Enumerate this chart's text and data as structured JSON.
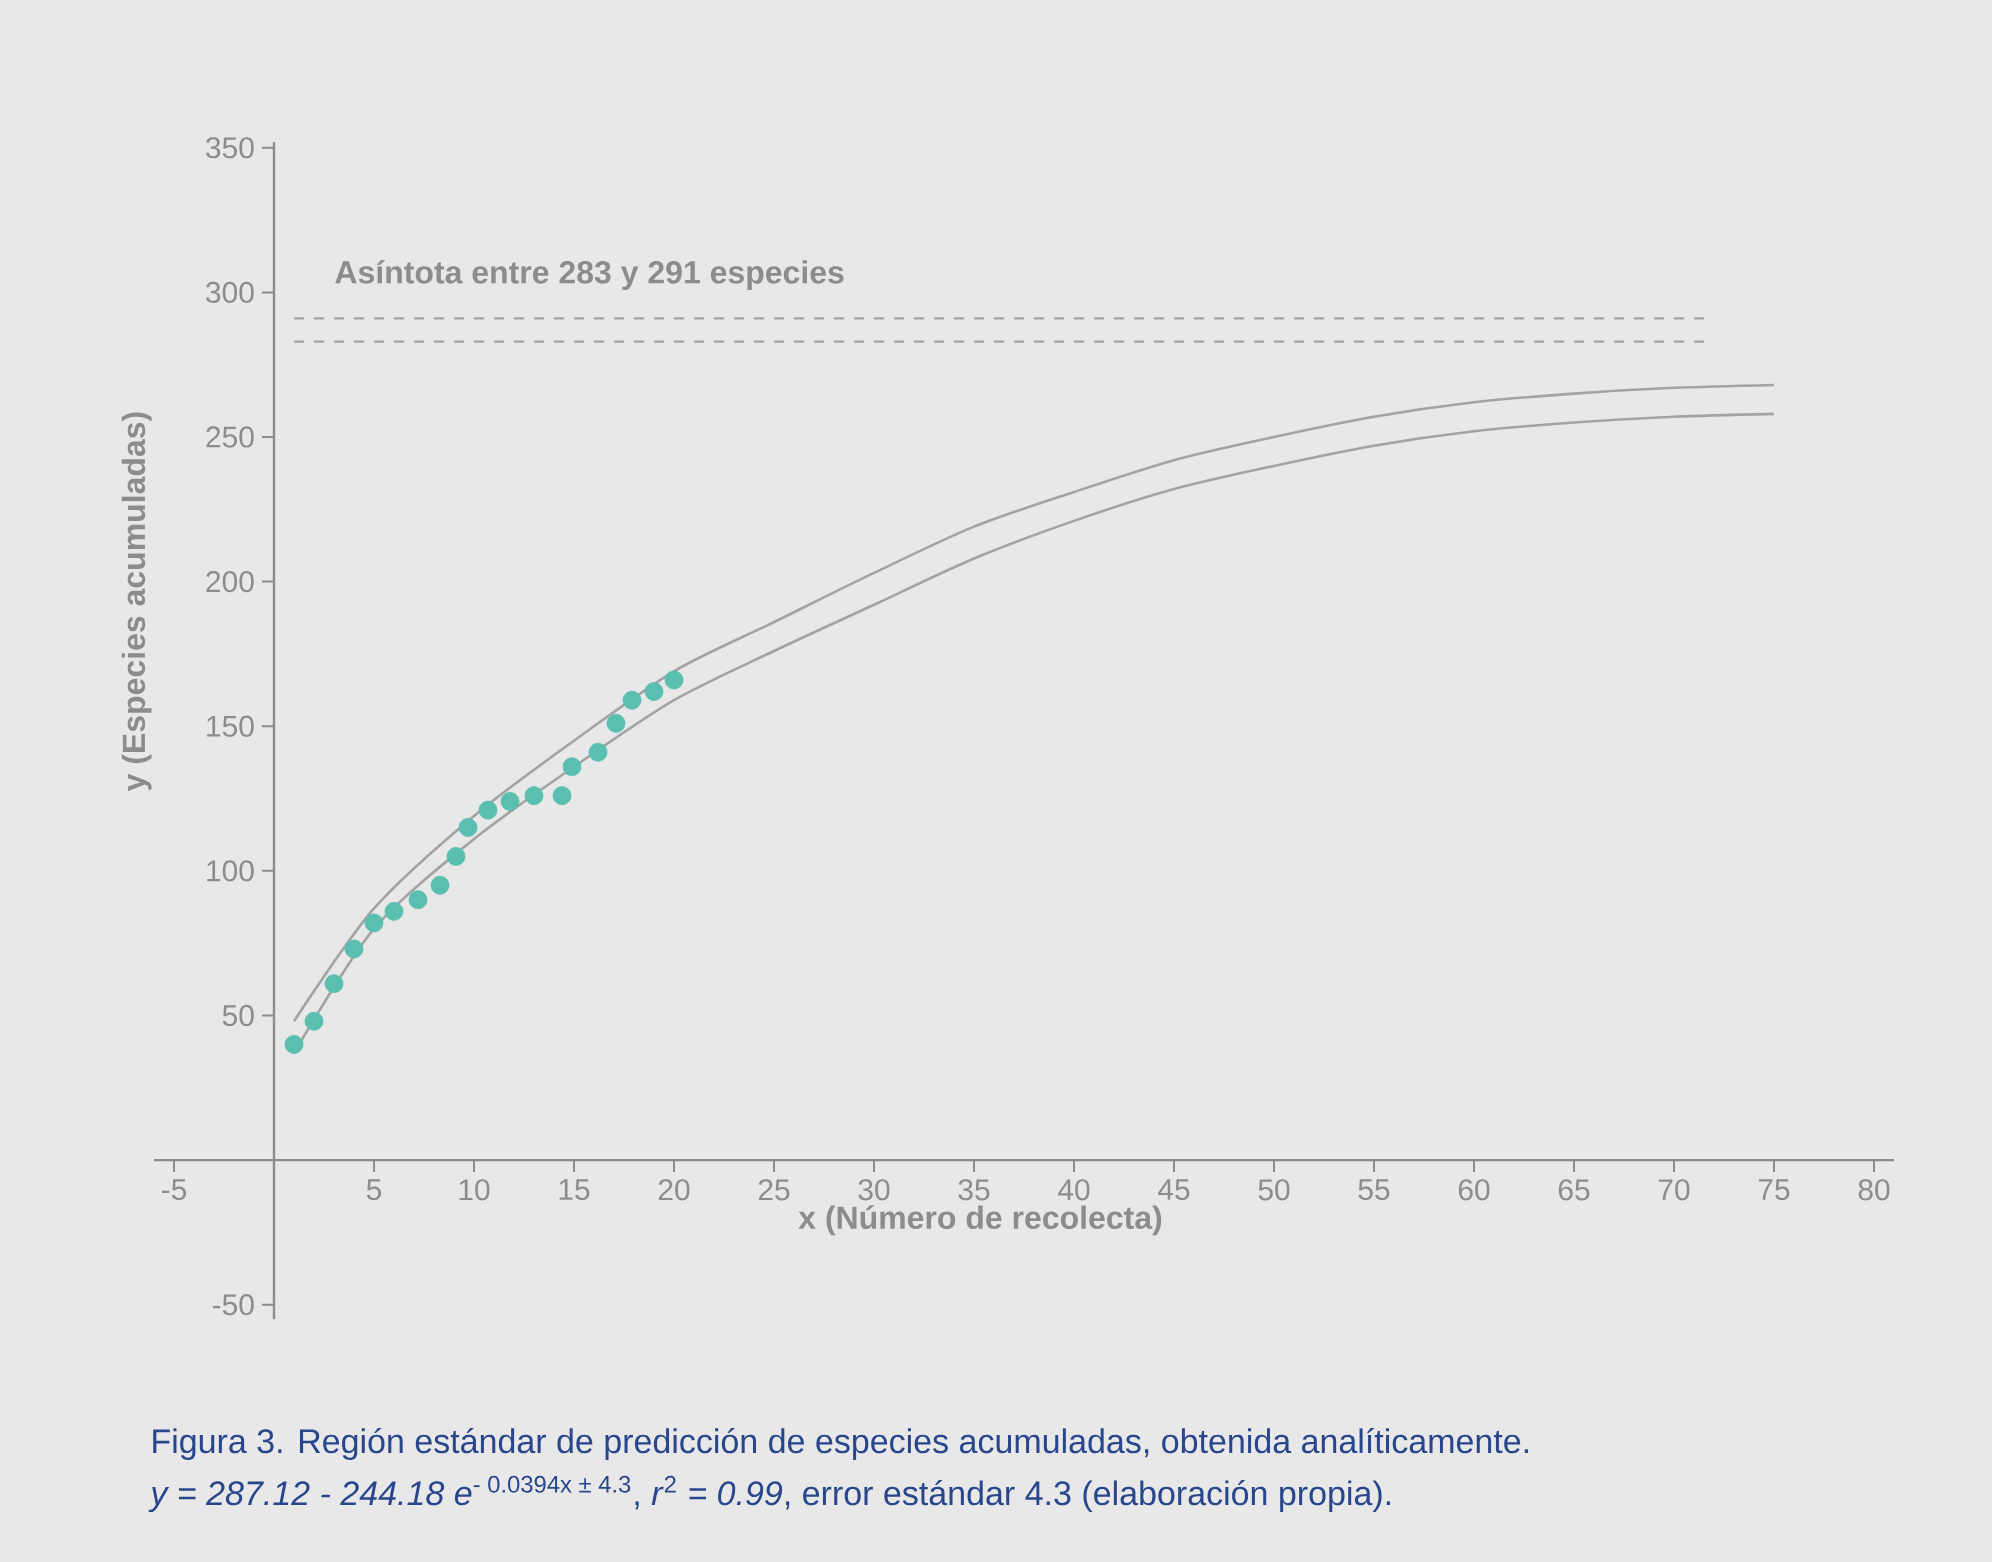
{
  "chart_data": {
    "type": "scatter",
    "xlabel": "x (Número de recolecta)",
    "ylabel": "y (Especies acumuladas)",
    "xlim": [
      -6,
      81
    ],
    "ylim": [
      -55,
      352
    ],
    "xticks": [
      -5,
      5,
      10,
      15,
      20,
      25,
      30,
      35,
      40,
      45,
      50,
      55,
      60,
      65,
      70,
      75,
      80
    ],
    "yticks": [
      -50,
      50,
      100,
      150,
      200,
      250,
      300,
      350
    ],
    "series": [
      {
        "marker": "circle",
        "color": "#5bbfb0",
        "x": [
          1,
          2,
          3,
          4,
          5,
          6,
          7.2,
          8.3,
          9.1,
          9.7,
          10.7,
          11.8,
          13,
          14.4,
          14.9,
          16.2,
          17.1,
          17.9,
          19,
          20
        ],
        "values": [
          40,
          48,
          61,
          73,
          82,
          86,
          90,
          95,
          105,
          115,
          121,
          124,
          126,
          126,
          136,
          141,
          151,
          159,
          162,
          166
        ]
      },
      {
        "type": "line",
        "marker": "none",
        "line_style": "solid",
        "color": "#a3a3a3",
        "x": [
          1,
          5,
          10,
          15,
          20,
          25,
          30,
          35,
          40,
          45,
          50,
          55,
          60,
          65,
          70,
          75
        ],
        "values": [
          48,
          87,
          119,
          145,
          169,
          186,
          203,
          219,
          231,
          242,
          250,
          257,
          262,
          265,
          267,
          268
        ]
      },
      {
        "type": "line",
        "marker": "none",
        "line_style": "solid",
        "color": "#a3a3a3",
        "x": [
          1,
          5,
          10,
          15,
          20,
          25,
          30,
          35,
          40,
          45,
          50,
          55,
          60,
          65,
          70,
          75
        ],
        "values": [
          37,
          80,
          111,
          136,
          159,
          176,
          192,
          208,
          221,
          232,
          240,
          247,
          252,
          255,
          257,
          258
        ]
      }
    ],
    "ref_lines": [
      {
        "axis": "y",
        "value": 291,
        "label": "Asíntota entre 283 y 291 especies",
        "color": "#a3a3a3",
        "line_style": "dashed"
      },
      {
        "axis": "y",
        "value": 283,
        "color": "#a3a3a3",
        "line_style": "dashed"
      }
    ],
    "annotations": [
      "Figura 3. Región estándar de predicción de especies acumuladas, obtenida analíticamente.",
      "*y = 287.12 - 244.18 e*$^{- 0.0394x ± 4.3}$, *r*$^{2}$ *= 0.99*, error estándar 4.3 (elaboración propia)."
    ]
  }
}
